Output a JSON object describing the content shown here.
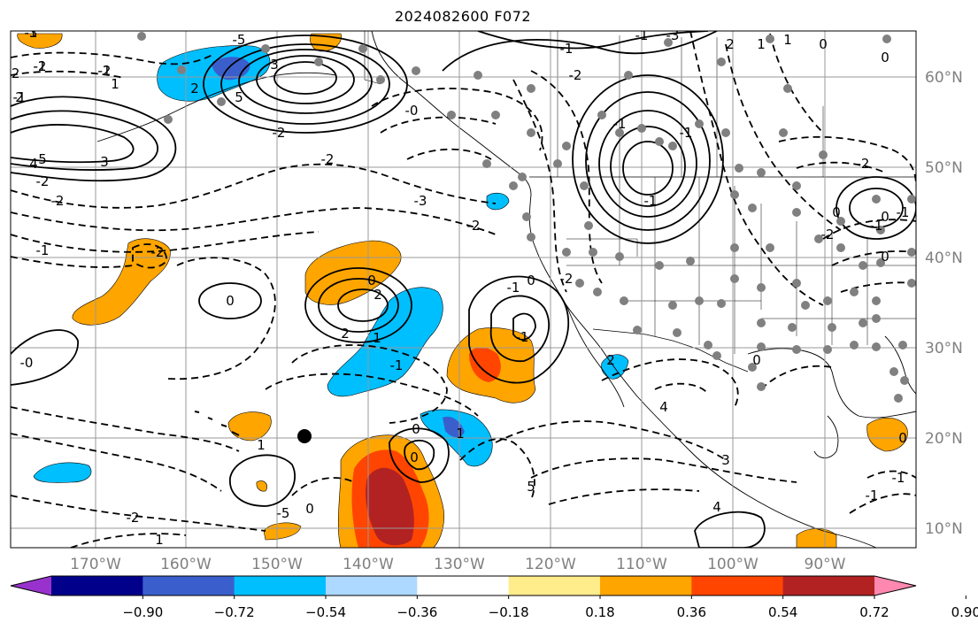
{
  "title": "2024082600 F072",
  "lon_labels": [
    "170°W",
    "160°W",
    "150°W",
    "140°W",
    "130°W",
    "120°W",
    "110°W",
    "100°W",
    "90°W"
  ],
  "lat_labels": [
    "60°N",
    "50°N",
    "40°N",
    "30°N",
    "20°N",
    "10°N"
  ],
  "colorbar": {
    "ticks": [
      "−0.90",
      "−0.72",
      "−0.54",
      "−0.36",
      "−0.18",
      "0.18",
      "0.36",
      "0.54",
      "0.72",
      "0.90"
    ],
    "colors": [
      "#9932cc",
      "#00008b",
      "#3a5fcd",
      "#00bfff",
      "#add8ff",
      "#ffffff",
      "#ffec8b",
      "#ffa500",
      "#ff4500",
      "#b22222",
      "#ff88b0"
    ]
  },
  "shading_colors": {
    "neg_light": "#00bfff",
    "neg_mid": "#3a5fcd",
    "pos_light": "#ffa500",
    "pos_mid": "#ff4500",
    "pos_dark": "#b22222",
    "pos_pale": "#ffec8b"
  },
  "contour_labels": [
    "-3",
    "-2",
    "-2",
    "2",
    "-2",
    "-5",
    "3",
    "5",
    "2",
    "-2",
    "-0",
    "1",
    "5",
    "4",
    "3",
    "-2",
    "-2",
    "-2",
    "-3",
    "-2",
    "-1",
    "-2",
    "0",
    "2",
    "2",
    "1",
    "0",
    "0",
    "-2",
    "-1",
    "-1",
    "-0",
    "-1",
    "0",
    "0",
    "1",
    "1",
    "0",
    "-2",
    "1",
    "-5",
    "5",
    "3",
    "4",
    "4",
    "2",
    "0",
    "-1",
    "-1",
    "-3",
    "-2",
    "-1",
    "-1",
    "-1",
    "-2",
    "-2",
    "0",
    "0",
    "-1",
    "-1",
    "-1",
    "-1",
    "0",
    "0",
    "1",
    "1",
    "0",
    "0",
    "2",
    "-1",
    "-1",
    "-1",
    "-1"
  ]
}
